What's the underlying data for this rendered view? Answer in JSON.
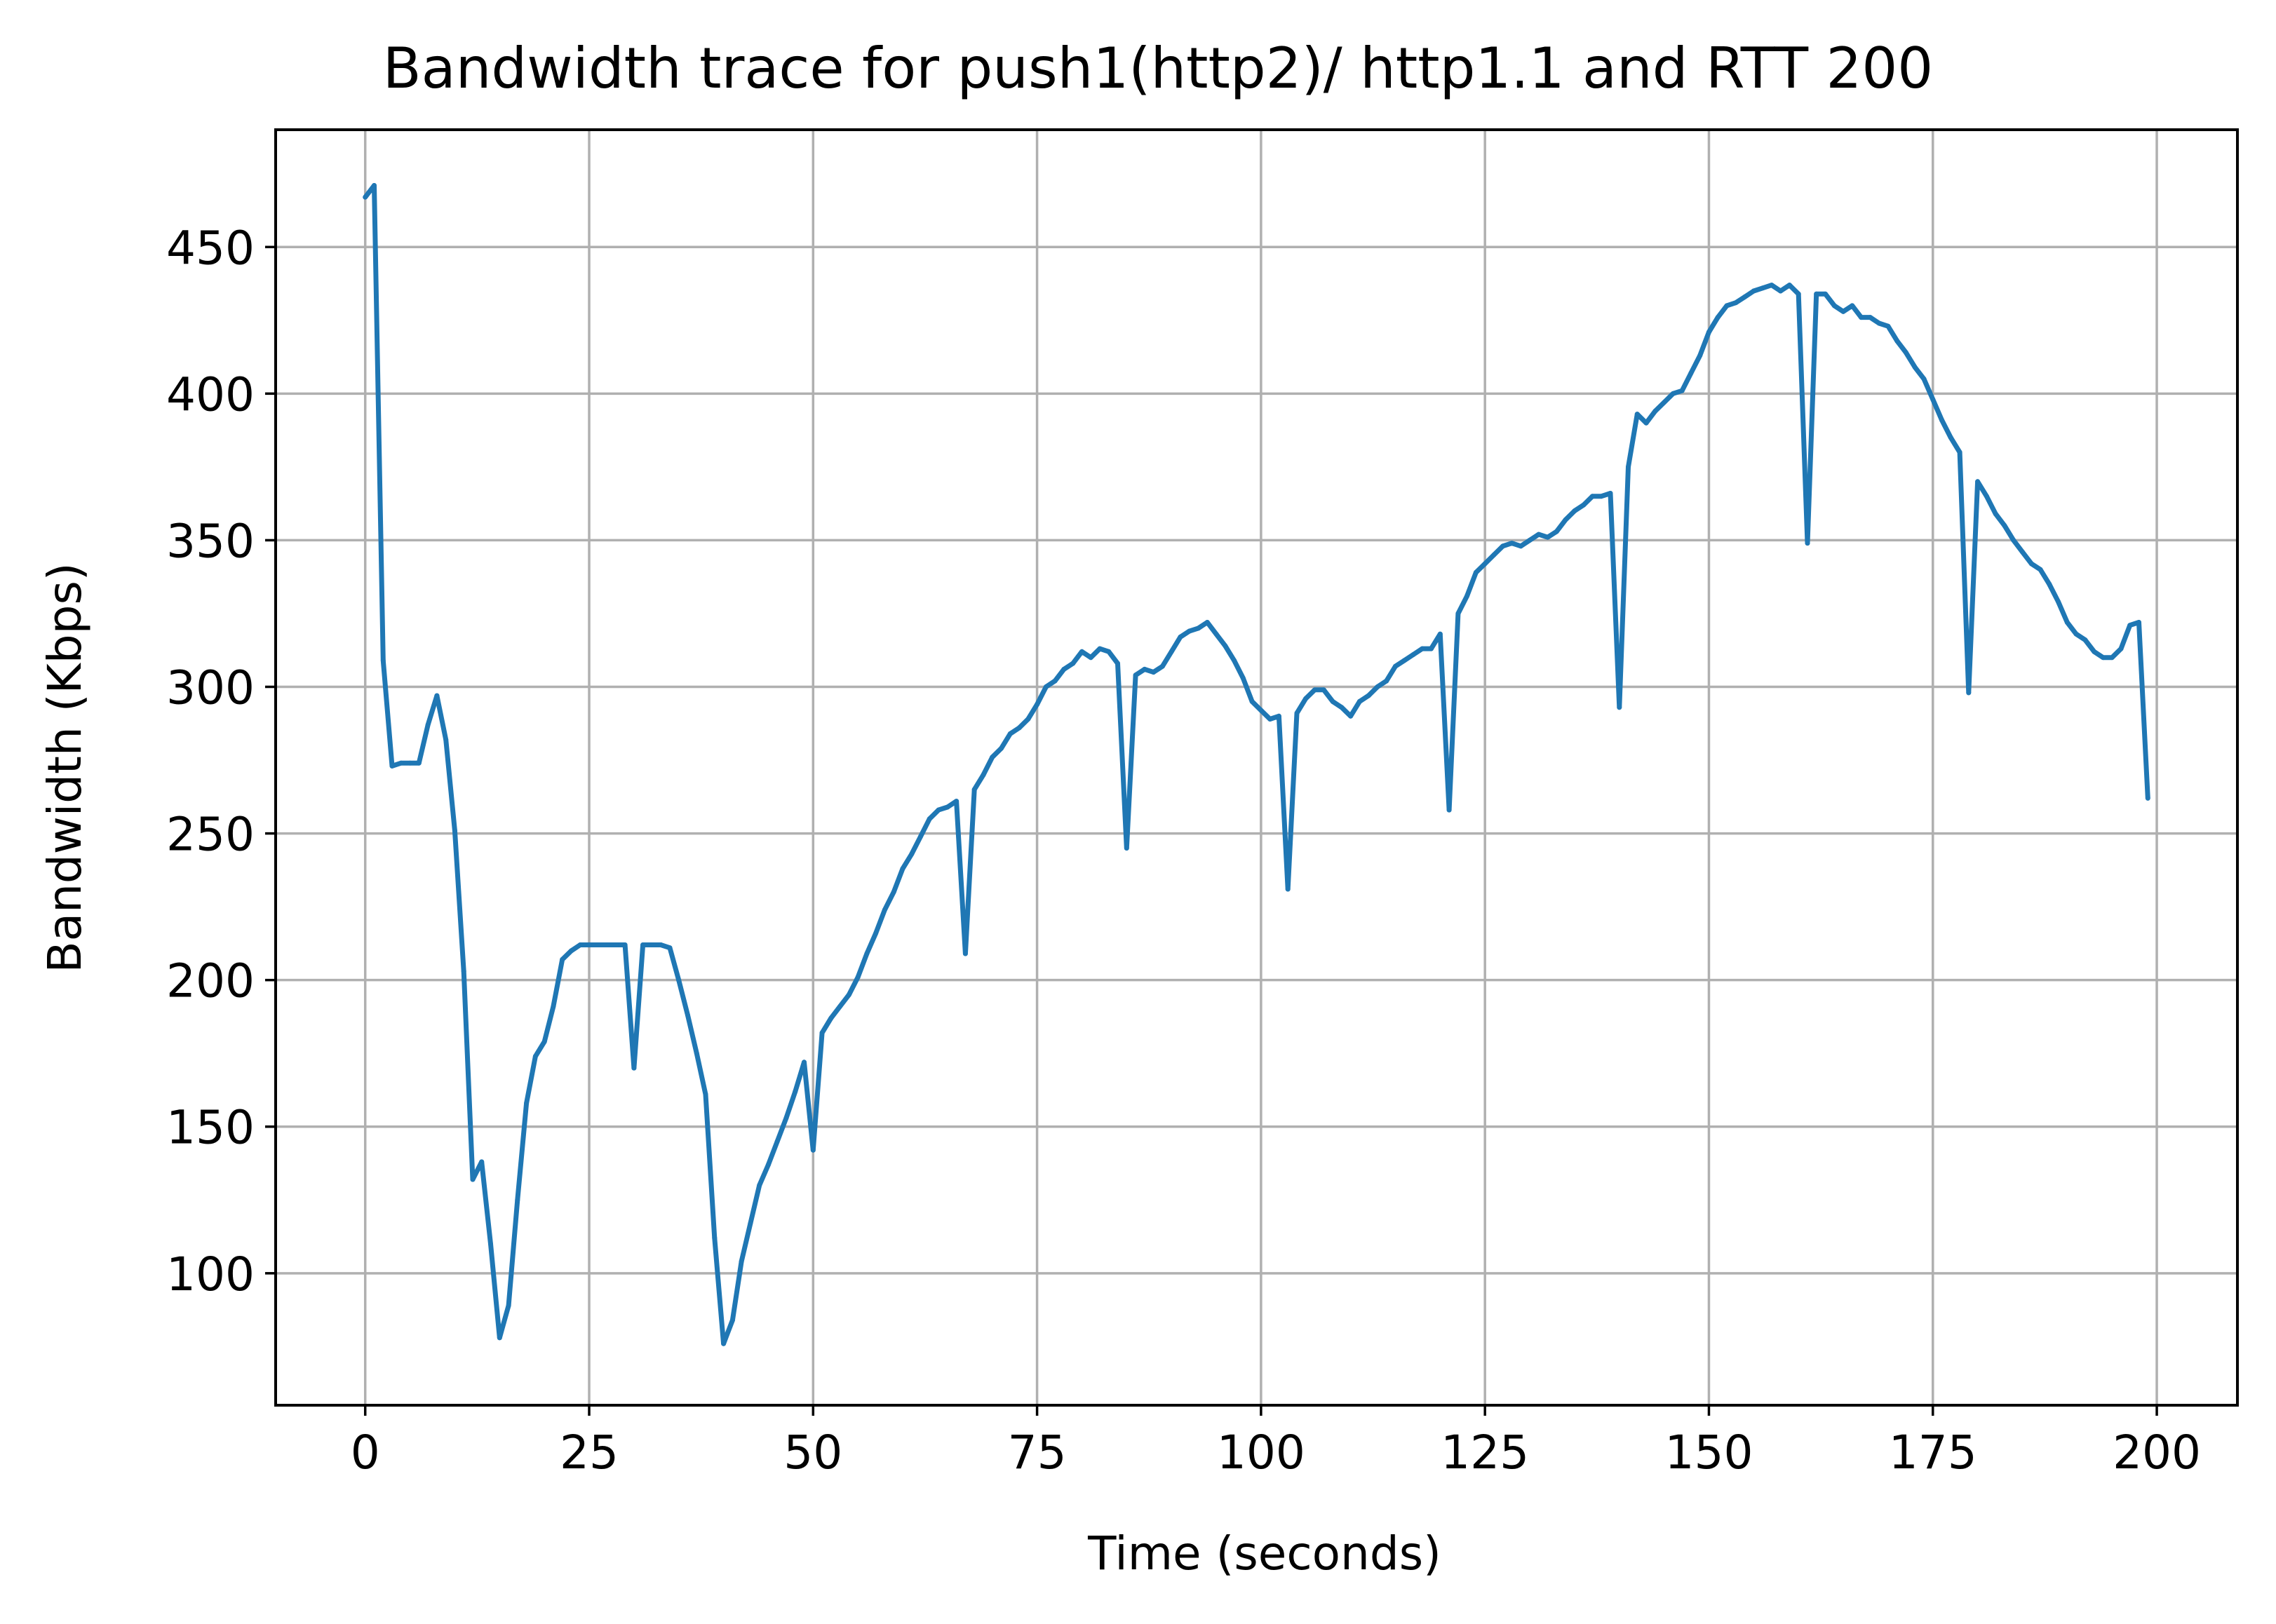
{
  "chart_data": {
    "type": "line",
    "title": "Bandwidth trace for push1(http2)/ http1.1 and RTT 200",
    "xlabel": "Time (seconds)",
    "ylabel": "Bandwidth (Kbps)",
    "xlim": [
      -10,
      209
    ],
    "ylim": [
      55,
      490
    ],
    "grid": true,
    "x_ticks": [
      0,
      25,
      50,
      75,
      100,
      125,
      150,
      175,
      200
    ],
    "y_ticks": [
      100,
      150,
      200,
      250,
      300,
      350,
      400,
      450
    ],
    "series": [
      {
        "color": "#1f77b4",
        "x": [
          0,
          1,
          2,
          3,
          4,
          5,
          6,
          7,
          8,
          9,
          10,
          11,
          12,
          13,
          14,
          15,
          16,
          17,
          18,
          19,
          20,
          21,
          22,
          23,
          24,
          25,
          26,
          27,
          28,
          29,
          30,
          31,
          32,
          33,
          34,
          35,
          36,
          37,
          38,
          39,
          40,
          41,
          42,
          43,
          44,
          45,
          46,
          47,
          48,
          49,
          50,
          51,
          52,
          53,
          54,
          55,
          56,
          57,
          58,
          59,
          60,
          61,
          62,
          63,
          64,
          65,
          66,
          67,
          68,
          69,
          70,
          71,
          72,
          73,
          74,
          75,
          76,
          77,
          78,
          79,
          80,
          81,
          82,
          83,
          84,
          85,
          86,
          87,
          88,
          89,
          90,
          91,
          92,
          93,
          94,
          95,
          96,
          97,
          98,
          99,
          100,
          101,
          102,
          103,
          104,
          105,
          106,
          107,
          108,
          109,
          110,
          111,
          112,
          113,
          114,
          115,
          116,
          117,
          118,
          119,
          120,
          121,
          122,
          123,
          124,
          125,
          126,
          127,
          128,
          129,
          130,
          131,
          132,
          133,
          134,
          135,
          136,
          137,
          138,
          139,
          140,
          141,
          142,
          143,
          144,
          145,
          146,
          147,
          148,
          149,
          150,
          151,
          152,
          153,
          154,
          155,
          156,
          157,
          158,
          159,
          160,
          161,
          162,
          163,
          164,
          165,
          166,
          167,
          168,
          169,
          170,
          171,
          172,
          173,
          174,
          175,
          176,
          177,
          178,
          179,
          180,
          181,
          182,
          183,
          184,
          185,
          186,
          187,
          188,
          189,
          190,
          191,
          192,
          193,
          194,
          195,
          196,
          197,
          198,
          199
        ],
        "y": [
          467,
          471,
          309,
          273,
          274,
          274,
          274,
          287,
          297,
          282,
          251,
          203,
          132,
          138,
          110,
          78,
          89,
          125,
          158,
          174,
          179,
          191,
          207,
          210,
          212,
          212,
          212,
          212,
          212,
          212,
          170,
          212,
          212,
          212,
          211,
          200,
          188,
          175,
          161,
          112,
          76,
          84,
          104,
          117,
          130,
          137,
          145,
          153,
          162,
          172,
          142,
          182,
          187,
          191,
          195,
          201,
          209,
          216,
          224,
          230,
          238,
          243,
          249,
          255,
          258,
          259,
          261,
          209,
          265,
          270,
          276,
          279,
          284,
          286,
          289,
          294,
          300,
          302,
          306,
          308,
          312,
          310,
          313,
          312,
          308,
          245,
          304,
          306,
          305,
          307,
          312,
          317,
          319,
          320,
          322,
          318,
          314,
          309,
          303,
          295,
          292,
          289,
          290,
          231,
          291,
          296,
          299,
          299,
          295,
          293,
          290,
          295,
          297,
          300,
          302,
          307,
          309,
          311,
          313,
          313,
          318,
          258,
          325,
          331,
          339,
          342,
          345,
          348,
          349,
          348,
          350,
          352,
          351,
          353,
          357,
          360,
          362,
          365,
          365,
          366,
          293,
          375,
          393,
          390,
          394,
          397,
          400,
          401,
          407,
          413,
          421,
          426,
          430,
          431,
          433,
          435,
          436,
          437,
          435,
          437,
          434,
          349,
          434,
          434,
          430,
          428,
          430,
          426,
          426,
          424,
          423,
          418,
          414,
          409,
          405,
          398,
          391,
          385,
          380,
          298,
          370,
          365,
          359,
          355,
          350,
          346,
          342,
          340,
          335,
          329,
          322,
          318,
          316,
          312,
          310,
          310,
          313,
          321,
          322,
          262
        ]
      }
    ]
  }
}
